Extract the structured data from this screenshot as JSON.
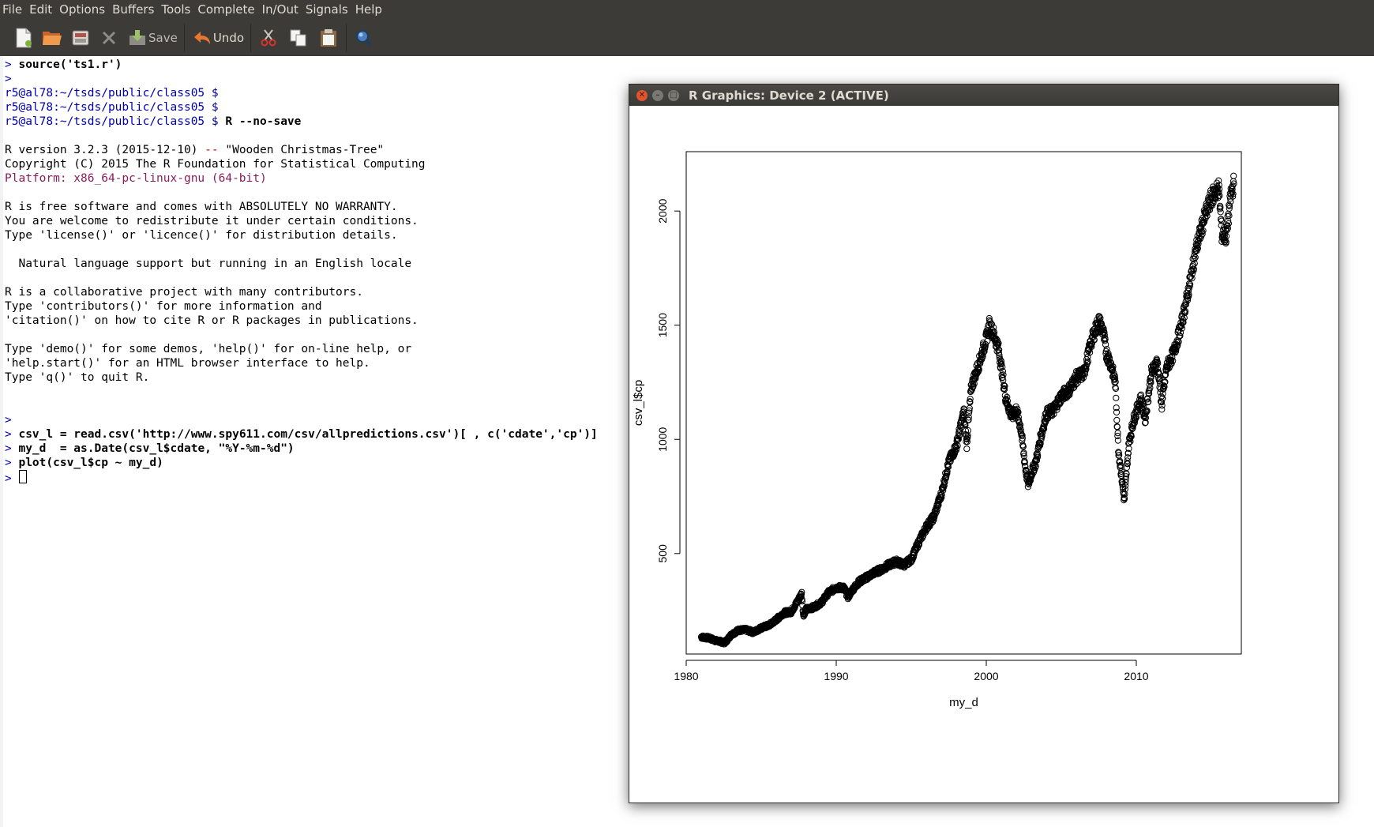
{
  "menu": [
    "File",
    "Edit",
    "Options",
    "Buffers",
    "Tools",
    "Complete",
    "In/Out",
    "Signals",
    "Help"
  ],
  "toolbar": {
    "save_label": "Save",
    "undo_label": "Undo"
  },
  "terminal": {
    "lines": [
      {
        "segs": [
          {
            "t": "> ",
            "c": "prompt"
          },
          {
            "t": "source('ts1.r')",
            "c": "bold"
          }
        ]
      },
      {
        "segs": [
          {
            "t": ">",
            "c": "prompt"
          }
        ]
      },
      {
        "segs": [
          {
            "t": "r5@al78:~/tsds/public/class05 $",
            "c": "sh"
          }
        ]
      },
      {
        "segs": [
          {
            "t": "r5@al78:~/tsds/public/class05 $",
            "c": "sh"
          }
        ]
      },
      {
        "segs": [
          {
            "t": "r5@al78:~/tsds/public/class05 $ ",
            "c": "sh"
          },
          {
            "t": "R --no-save",
            "c": "bold"
          }
        ]
      },
      {
        "segs": []
      },
      {
        "segs": [
          {
            "t": "R version 3.2.3 (2015-12-10) ",
            "c": ""
          },
          {
            "t": "--",
            "c": "red"
          },
          {
            "t": " \"Wooden Christmas-Tree\"",
            "c": ""
          }
        ]
      },
      {
        "segs": [
          {
            "t": "Copyright (C) 2015 The R Foundation for Statistical Computing",
            "c": ""
          }
        ]
      },
      {
        "segs": [
          {
            "t": "Platform: x86_64-pc-linux-gnu (64-bit)",
            "c": "purple"
          }
        ]
      },
      {
        "segs": []
      },
      {
        "segs": [
          {
            "t": "R is free software and comes with ABSOLUTELY NO WARRANTY.",
            "c": ""
          }
        ]
      },
      {
        "segs": [
          {
            "t": "You are welcome to redistribute it under certain conditions.",
            "c": ""
          }
        ]
      },
      {
        "segs": [
          {
            "t": "Type 'license()' or 'licence()' for distribution details.",
            "c": ""
          }
        ]
      },
      {
        "segs": []
      },
      {
        "segs": [
          {
            "t": "  Natural language support but running in an English locale",
            "c": ""
          }
        ]
      },
      {
        "segs": []
      },
      {
        "segs": [
          {
            "t": "R is a collaborative project with many contributors.",
            "c": ""
          }
        ]
      },
      {
        "segs": [
          {
            "t": "Type 'contributors()' for more information and",
            "c": ""
          }
        ]
      },
      {
        "segs": [
          {
            "t": "'citation()' on how to cite R or R packages in publications.",
            "c": ""
          }
        ]
      },
      {
        "segs": []
      },
      {
        "segs": [
          {
            "t": "Type 'demo()' for some demos, 'help()' for on-line help, or",
            "c": ""
          }
        ]
      },
      {
        "segs": [
          {
            "t": "'help.start()' for an HTML browser interface to help.",
            "c": ""
          }
        ]
      },
      {
        "segs": [
          {
            "t": "Type 'q()' to quit R.",
            "c": ""
          }
        ]
      },
      {
        "segs": []
      },
      {
        "segs": []
      },
      {
        "segs": [
          {
            "t": ">",
            "c": "prompt"
          }
        ]
      },
      {
        "segs": [
          {
            "t": "> ",
            "c": "prompt"
          },
          {
            "t": "csv_l = read.csv('http://www.spy611.com/csv/allpredictions.csv')[ , c('cdate','cp')]",
            "c": "bold"
          }
        ]
      },
      {
        "segs": [
          {
            "t": "> ",
            "c": "prompt"
          },
          {
            "t": "my_d  = as.Date(csv_l$cdate, \"%Y-%m-%d\")",
            "c": "bold"
          }
        ]
      },
      {
        "segs": [
          {
            "t": "> ",
            "c": "prompt"
          },
          {
            "t": "plot(csv_l$cp ~ my_d)",
            "c": "bold"
          }
        ]
      },
      {
        "segs": [
          {
            "t": "> ",
            "c": "prompt"
          }
        ],
        "cursor": true
      }
    ]
  },
  "graphics_window": {
    "title": "R Graphics: Device 2 (ACTIVE)"
  },
  "chart_data": {
    "type": "scatter",
    "xlabel": "my_d",
    "ylabel": "csv_l$cp",
    "x_ticks": [
      "1980",
      "1990",
      "2000",
      "2010"
    ],
    "y_ticks": [
      "500",
      "1000",
      "1500",
      "2000"
    ],
    "xlim": [
      1980,
      2017
    ],
    "ylim": [
      60,
      2260
    ],
    "grid": false,
    "marker": "open-circle",
    "points": [
      [
        1981.0,
        135
      ],
      [
        1981.5,
        130
      ],
      [
        1982.0,
        118
      ],
      [
        1982.6,
        110
      ],
      [
        1983.0,
        145
      ],
      [
        1983.5,
        165
      ],
      [
        1984.0,
        165
      ],
      [
        1984.5,
        155
      ],
      [
        1985.0,
        175
      ],
      [
        1985.5,
        185
      ],
      [
        1986.0,
        210
      ],
      [
        1986.5,
        240
      ],
      [
        1987.0,
        245
      ],
      [
        1987.5,
        300
      ],
      [
        1987.7,
        325
      ],
      [
        1987.8,
        230
      ],
      [
        1988.0,
        255
      ],
      [
        1988.5,
        265
      ],
      [
        1989.0,
        285
      ],
      [
        1989.5,
        330
      ],
      [
        1990.0,
        350
      ],
      [
        1990.5,
        350
      ],
      [
        1990.8,
        310
      ],
      [
        1991.0,
        335
      ],
      [
        1991.5,
        375
      ],
      [
        1992.0,
        395
      ],
      [
        1992.5,
        415
      ],
      [
        1993.0,
        430
      ],
      [
        1993.5,
        450
      ],
      [
        1994.0,
        465
      ],
      [
        1994.5,
        450
      ],
      [
        1995.0,
        475
      ],
      [
        1995.5,
        550
      ],
      [
        1996.0,
        615
      ],
      [
        1996.5,
        660
      ],
      [
        1997.0,
        760
      ],
      [
        1997.5,
        900
      ],
      [
        1998.0,
        970
      ],
      [
        1998.5,
        1120
      ],
      [
        1998.7,
        980
      ],
      [
        1999.0,
        1230
      ],
      [
        1999.5,
        1330
      ],
      [
        2000.0,
        1440
      ],
      [
        2000.2,
        1500
      ],
      [
        2000.5,
        1460
      ],
      [
        2000.8,
        1400
      ],
      [
        2001.0,
        1320
      ],
      [
        2001.3,
        1180
      ],
      [
        2001.7,
        1100
      ],
      [
        2002.0,
        1130
      ],
      [
        2002.3,
        1050
      ],
      [
        2002.6,
        880
      ],
      [
        2002.8,
        800
      ],
      [
        2003.0,
        850
      ],
      [
        2003.3,
        900
      ],
      [
        2003.6,
        1000
      ],
      [
        2004.0,
        1110
      ],
      [
        2004.5,
        1130
      ],
      [
        2005.0,
        1190
      ],
      [
        2005.5,
        1215
      ],
      [
        2006.0,
        1270
      ],
      [
        2006.5,
        1290
      ],
      [
        2007.0,
        1430
      ],
      [
        2007.5,
        1520
      ],
      [
        2007.8,
        1470
      ],
      [
        2008.0,
        1380
      ],
      [
        2008.3,
        1330
      ],
      [
        2008.6,
        1250
      ],
      [
        2008.8,
        960
      ],
      [
        2009.0,
        850
      ],
      [
        2009.2,
        730
      ],
      [
        2009.5,
        980
      ],
      [
        2009.8,
        1080
      ],
      [
        2010.0,
        1120
      ],
      [
        2010.3,
        1180
      ],
      [
        2010.6,
        1090
      ],
      [
        2011.0,
        1290
      ],
      [
        2011.4,
        1340
      ],
      [
        2011.7,
        1150
      ],
      [
        2012.0,
        1310
      ],
      [
        2012.5,
        1380
      ],
      [
        2013.0,
        1500
      ],
      [
        2013.5,
        1660
      ],
      [
        2014.0,
        1840
      ],
      [
        2014.5,
        1960
      ],
      [
        2015.0,
        2060
      ],
      [
        2015.5,
        2100
      ],
      [
        2015.7,
        1900
      ],
      [
        2016.0,
        1890
      ],
      [
        2016.3,
        2070
      ],
      [
        2016.5,
        2120
      ]
    ]
  }
}
